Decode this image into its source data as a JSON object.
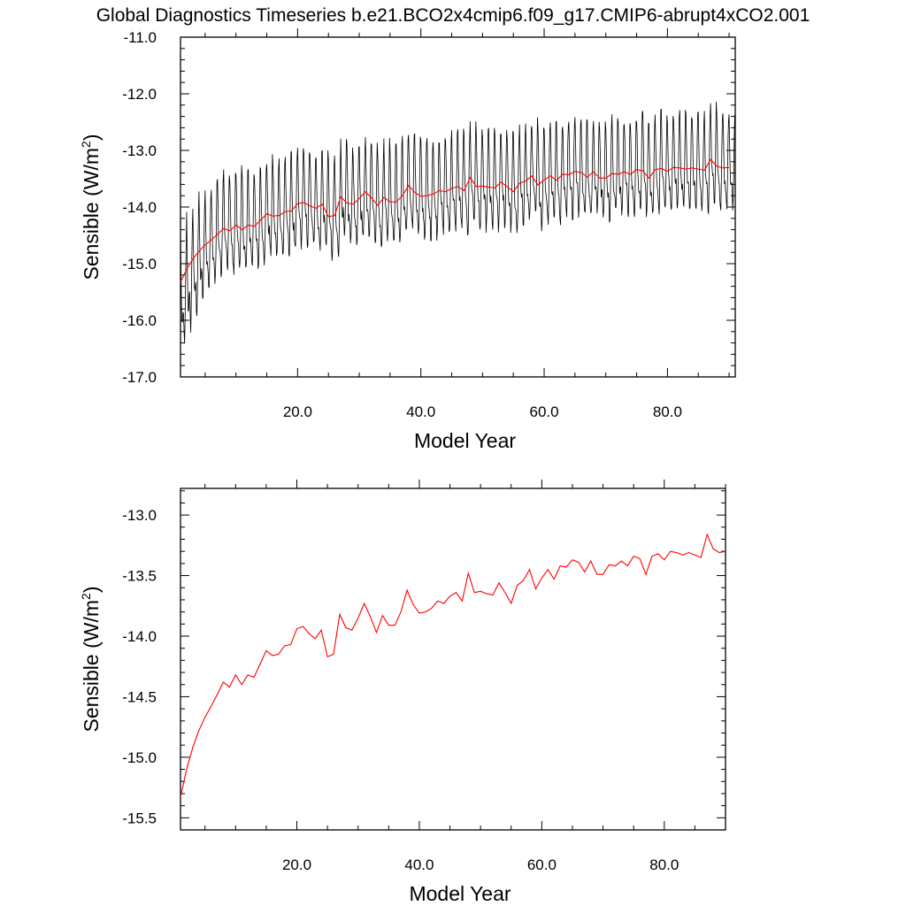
{
  "title": "Global Diagnostics Timeseries b.e21.BCO2x4cmip6.f09_g17.CMIP6-abrupt4xCO2.001",
  "colors": {
    "monthly": "#000000",
    "annual": "#ff0000",
    "axes": "#000000",
    "background": "#ffffff"
  },
  "chart_data": [
    {
      "type": "line",
      "panel": "top",
      "xlabel": "Model Year",
      "ylabel_main": "Sensible (W/m",
      "ylabel_sup": "2",
      "ylabel_close": ")",
      "xlim": [
        1,
        91
      ],
      "ylim": [
        -17.0,
        -11.0
      ],
      "xticks": [
        20,
        40,
        60,
        80
      ],
      "xtick_labels": [
        "20.0",
        "40.0",
        "60.0",
        "80.0"
      ],
      "yticks": [
        -17,
        -16,
        -15,
        -14,
        -13,
        -12,
        -11
      ],
      "ytick_labels": [
        "-17.0",
        "-16.0",
        "-15.0",
        "-14.0",
        "-13.0",
        "-12.0",
        "-11.0"
      ],
      "series": [
        {
          "name": "monthly",
          "color": "#000000",
          "x_start": 1,
          "x_step": 0.0833333,
          "seasonal_amplitude": 0.95,
          "noise": 0.12,
          "trend_source": "annual"
        },
        {
          "name": "annual",
          "color": "#ff0000",
          "x_start": 1,
          "x_step": 1,
          "values": [
            -15.33,
            -15.1,
            -14.92,
            -14.78,
            -14.67,
            -14.58,
            -14.48,
            -14.38,
            -14.42,
            -14.32,
            -14.4,
            -14.32,
            -14.34,
            -14.23,
            -14.12,
            -14.16,
            -14.15,
            -14.08,
            -14.07,
            -13.94,
            -13.92,
            -13.98,
            -14.02,
            -13.95,
            -14.17,
            -14.15,
            -13.82,
            -13.93,
            -13.95,
            -13.85,
            -13.73,
            -13.84,
            -13.97,
            -13.83,
            -13.91,
            -13.91,
            -13.8,
            -13.62,
            -13.74,
            -13.81,
            -13.8,
            -13.77,
            -13.71,
            -13.73,
            -13.67,
            -13.64,
            -13.71,
            -13.48,
            -13.64,
            -13.63,
            -13.65,
            -13.66,
            -13.56,
            -13.64,
            -13.73,
            -13.58,
            -13.54,
            -13.45,
            -13.61,
            -13.52,
            -13.45,
            -13.53,
            -13.42,
            -13.43,
            -13.37,
            -13.39,
            -13.47,
            -13.38,
            -13.49,
            -13.49,
            -13.41,
            -13.42,
            -13.38,
            -13.42,
            -13.34,
            -13.36,
            -13.49,
            -13.34,
            -13.32,
            -13.37,
            -13.3,
            -13.31,
            -13.33,
            -13.31,
            -13.33,
            -13.35,
            -13.16,
            -13.28,
            -13.31,
            -13.3
          ]
        }
      ]
    },
    {
      "type": "line",
      "panel": "bottom",
      "xlabel": "Model Year",
      "ylabel_main": "Sensible (W/m",
      "ylabel_sup": "2",
      "ylabel_close": ")",
      "xlim": [
        1,
        90
      ],
      "ylim": [
        -15.6,
        -12.78
      ],
      "xticks": [
        20,
        40,
        60,
        80
      ],
      "xtick_labels": [
        "20.0",
        "40.0",
        "60.0",
        "80.0"
      ],
      "yticks": [
        -15.5,
        -15.0,
        -14.5,
        -14.0,
        -13.5,
        -13.0
      ],
      "ytick_labels": [
        "-15.5",
        "-15.0",
        "-14.5",
        "-14.0",
        "-13.5",
        "-13.0"
      ],
      "series": [
        {
          "name": "annual",
          "color": "#ff0000",
          "x_start": 1,
          "x_step": 1,
          "values": [
            -15.33,
            -15.1,
            -14.92,
            -14.78,
            -14.67,
            -14.58,
            -14.48,
            -14.38,
            -14.42,
            -14.32,
            -14.4,
            -14.32,
            -14.34,
            -14.23,
            -14.12,
            -14.16,
            -14.15,
            -14.08,
            -14.07,
            -13.94,
            -13.92,
            -13.98,
            -14.02,
            -13.95,
            -14.17,
            -14.15,
            -13.82,
            -13.93,
            -13.95,
            -13.85,
            -13.73,
            -13.84,
            -13.97,
            -13.83,
            -13.91,
            -13.91,
            -13.8,
            -13.62,
            -13.74,
            -13.81,
            -13.8,
            -13.77,
            -13.71,
            -13.73,
            -13.67,
            -13.64,
            -13.71,
            -13.48,
            -13.64,
            -13.63,
            -13.65,
            -13.66,
            -13.56,
            -13.64,
            -13.73,
            -13.58,
            -13.54,
            -13.45,
            -13.61,
            -13.52,
            -13.45,
            -13.53,
            -13.42,
            -13.43,
            -13.37,
            -13.39,
            -13.47,
            -13.38,
            -13.49,
            -13.49,
            -13.41,
            -13.42,
            -13.38,
            -13.42,
            -13.34,
            -13.36,
            -13.49,
            -13.34,
            -13.32,
            -13.37,
            -13.3,
            -13.31,
            -13.33,
            -13.31,
            -13.33,
            -13.35,
            -13.16,
            -13.28,
            -13.31,
            -13.3
          ]
        }
      ]
    }
  ]
}
